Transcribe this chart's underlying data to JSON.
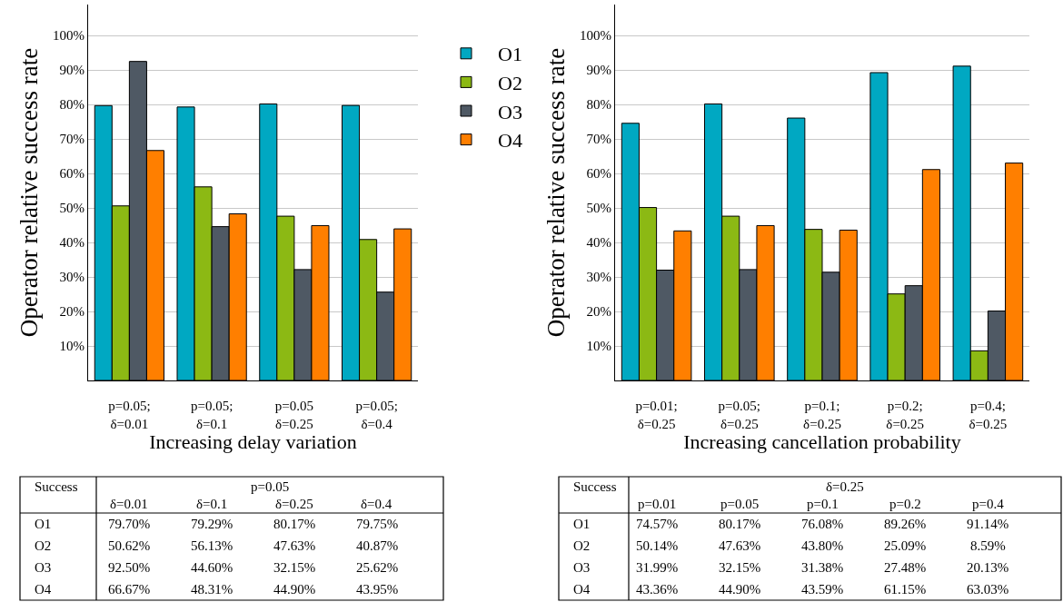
{
  "chart_data": [
    {
      "type": "bar",
      "xlabel": "Increasing delay variation",
      "ylabel": "Operator relative success rate",
      "categories": [
        "p=0.05;\nδ=0.01",
        "p=0.05;\nδ=0.1",
        "p=0.05\nδ=0.25",
        "p=0.05;\nδ=0.4"
      ],
      "series": [
        {
          "name": "O1",
          "color": "#00a8c2",
          "values": [
            79.7,
            79.29,
            80.17,
            79.75
          ],
          "value_labels": [
            "79.70%",
            "79.29%",
            "80.17%",
            "79.75%"
          ]
        },
        {
          "name": "O2",
          "color": "#8cb914",
          "values": [
            50.62,
            56.13,
            47.63,
            40.87
          ],
          "value_labels": [
            "50.62%",
            "56.13%",
            "47.63%",
            "40.87%"
          ]
        },
        {
          "name": "O3",
          "color": "#4f5964",
          "values": [
            92.5,
            44.6,
            32.15,
            25.62
          ],
          "value_labels": [
            "92.50%",
            "44.60%",
            "32.15%",
            "25.62%"
          ]
        },
        {
          "name": "O4",
          "color": "#ff7f00",
          "values": [
            66.67,
            48.31,
            44.9,
            43.95
          ],
          "value_labels": [
            "66.67%",
            "48.31%",
            "44.90%",
            "43.95%"
          ]
        }
      ],
      "ylim": [
        0,
        109
      ],
      "yticks": [
        {
          "value": 10,
          "label": "10%"
        },
        {
          "value": 20,
          "label": "20%"
        },
        {
          "value": 30,
          "label": "30%"
        },
        {
          "value": 40,
          "label": "40%"
        },
        {
          "value": 50,
          "label": "50%"
        },
        {
          "value": 60,
          "label": "60%"
        },
        {
          "value": 70,
          "label": "70%"
        },
        {
          "value": 80,
          "label": "80%"
        },
        {
          "value": 90,
          "label": "90%"
        },
        {
          "value": 100,
          "label": "100%"
        }
      ],
      "grid": "y",
      "legend": "right",
      "annotations": [
        "Success",
        "p=0.05",
        "δ=0.01",
        "δ=0.1",
        "δ=0.25",
        "δ=0.4"
      ]
    },
    {
      "type": "bar",
      "xlabel": "Increasing cancellation probability",
      "ylabel": "Operator relative success rate",
      "categories": [
        "p=0.01;\nδ=0.25",
        "p=0.05;\nδ=0.25",
        "p=0.1;\nδ=0.25",
        "p=0.2;\nδ=0.25",
        "p=0.4;\nδ=0.25"
      ],
      "series": [
        {
          "color": "#00a8c2",
          "values": [
            74.57,
            80.17,
            76.08,
            89.26,
            91.14
          ],
          "value_labels": [
            "74.57%",
            "80.17%",
            "76.08%",
            "89.26%",
            "91.14%"
          ]
        },
        {
          "color": "#8cb914",
          "values": [
            50.14,
            47.63,
            43.8,
            25.09,
            8.59
          ],
          "value_labels": [
            "50.14%",
            "47.63%",
            "43.80%",
            "25.09%",
            "8.59%"
          ]
        },
        {
          "color": "#4f5964",
          "values": [
            31.99,
            32.15,
            31.38,
            27.48,
            20.13
          ],
          "value_labels": [
            "31.99%",
            "32.15%",
            "31.38%",
            "27.48%",
            "20.13%"
          ]
        },
        {
          "color": "#ff7f00",
          "values": [
            43.36,
            44.9,
            43.59,
            61.15,
            63.03
          ],
          "value_labels": [
            "43.36%",
            "44.90%",
            "43.59%",
            "61.15%",
            "63.03%"
          ]
        }
      ],
      "ylim": [
        0,
        109
      ],
      "yticks": [
        {
          "value": 10,
          "label": "10%"
        },
        {
          "value": 20,
          "label": "20%"
        },
        {
          "value": 30,
          "label": "30%"
        },
        {
          "value": 40,
          "label": "40%"
        },
        {
          "value": 50,
          "label": "50%"
        },
        {
          "value": 60,
          "label": "60%"
        },
        {
          "value": 70,
          "label": "70%"
        },
        {
          "value": 80,
          "label": "80%"
        },
        {
          "value": 90,
          "label": "90%"
        },
        {
          "value": 100,
          "label": "100%"
        }
      ],
      "grid": "y",
      "annotations": [
        "Success",
        "δ=0.25",
        "p=0.01",
        "p=0.05",
        "p=0.1",
        "p=0.2",
        "p=0.4",
        "O1",
        "O2",
        "O3",
        "O4"
      ]
    }
  ]
}
